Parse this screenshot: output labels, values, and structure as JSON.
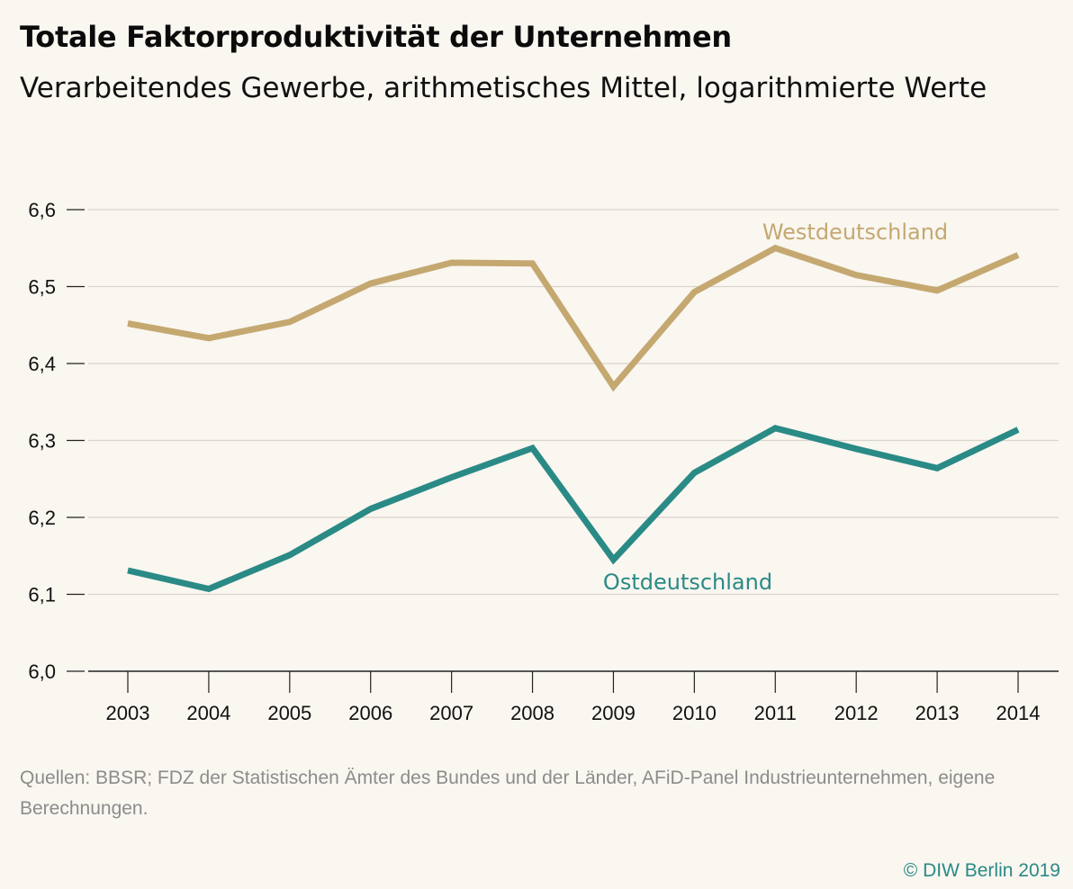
{
  "header": {
    "title": "Totale Faktorproduktivität der Unternehmen",
    "subtitle": "Verarbeitendes Gewerbe, arithmetisches Mittel, logarithmierte Werte"
  },
  "footer": {
    "source": "Quellen: BBSR; FDZ der Statistischen Ämter des Bundes und der Länder, AFiD-Panel Industrieunternehmen, eigene Berechnungen.",
    "copyright": "© DIW Berlin 2019"
  },
  "chart_data": {
    "type": "line",
    "title": "Totale Faktorproduktivität der Unternehmen",
    "subtitle": "Verarbeitendes Gewerbe, arithmetisches Mittel, logarithmierte Werte",
    "xlabel": "",
    "ylabel": "",
    "x": [
      "2003",
      "2004",
      "2005",
      "2006",
      "2007",
      "2008",
      "2009",
      "2010",
      "2011",
      "2012",
      "2013",
      "2014"
    ],
    "ylim": [
      6.0,
      6.6
    ],
    "yticks": [
      "6,0",
      "6,1",
      "6,2",
      "6,3",
      "6,4",
      "6,5",
      "6,6"
    ],
    "grid": true,
    "series": [
      {
        "name": "Westdeutschland",
        "color": "#c4a870",
        "values": [
          6.452,
          6.433,
          6.454,
          6.504,
          6.531,
          6.53,
          6.37,
          6.493,
          6.55,
          6.515,
          6.495,
          6.541
        ]
      },
      {
        "name": "Ostdeutschland",
        "color": "#2a8a86",
        "values": [
          6.131,
          6.107,
          6.151,
          6.211,
          6.252,
          6.29,
          6.145,
          6.258,
          6.316,
          6.289,
          6.264,
          6.314
        ]
      }
    ]
  }
}
